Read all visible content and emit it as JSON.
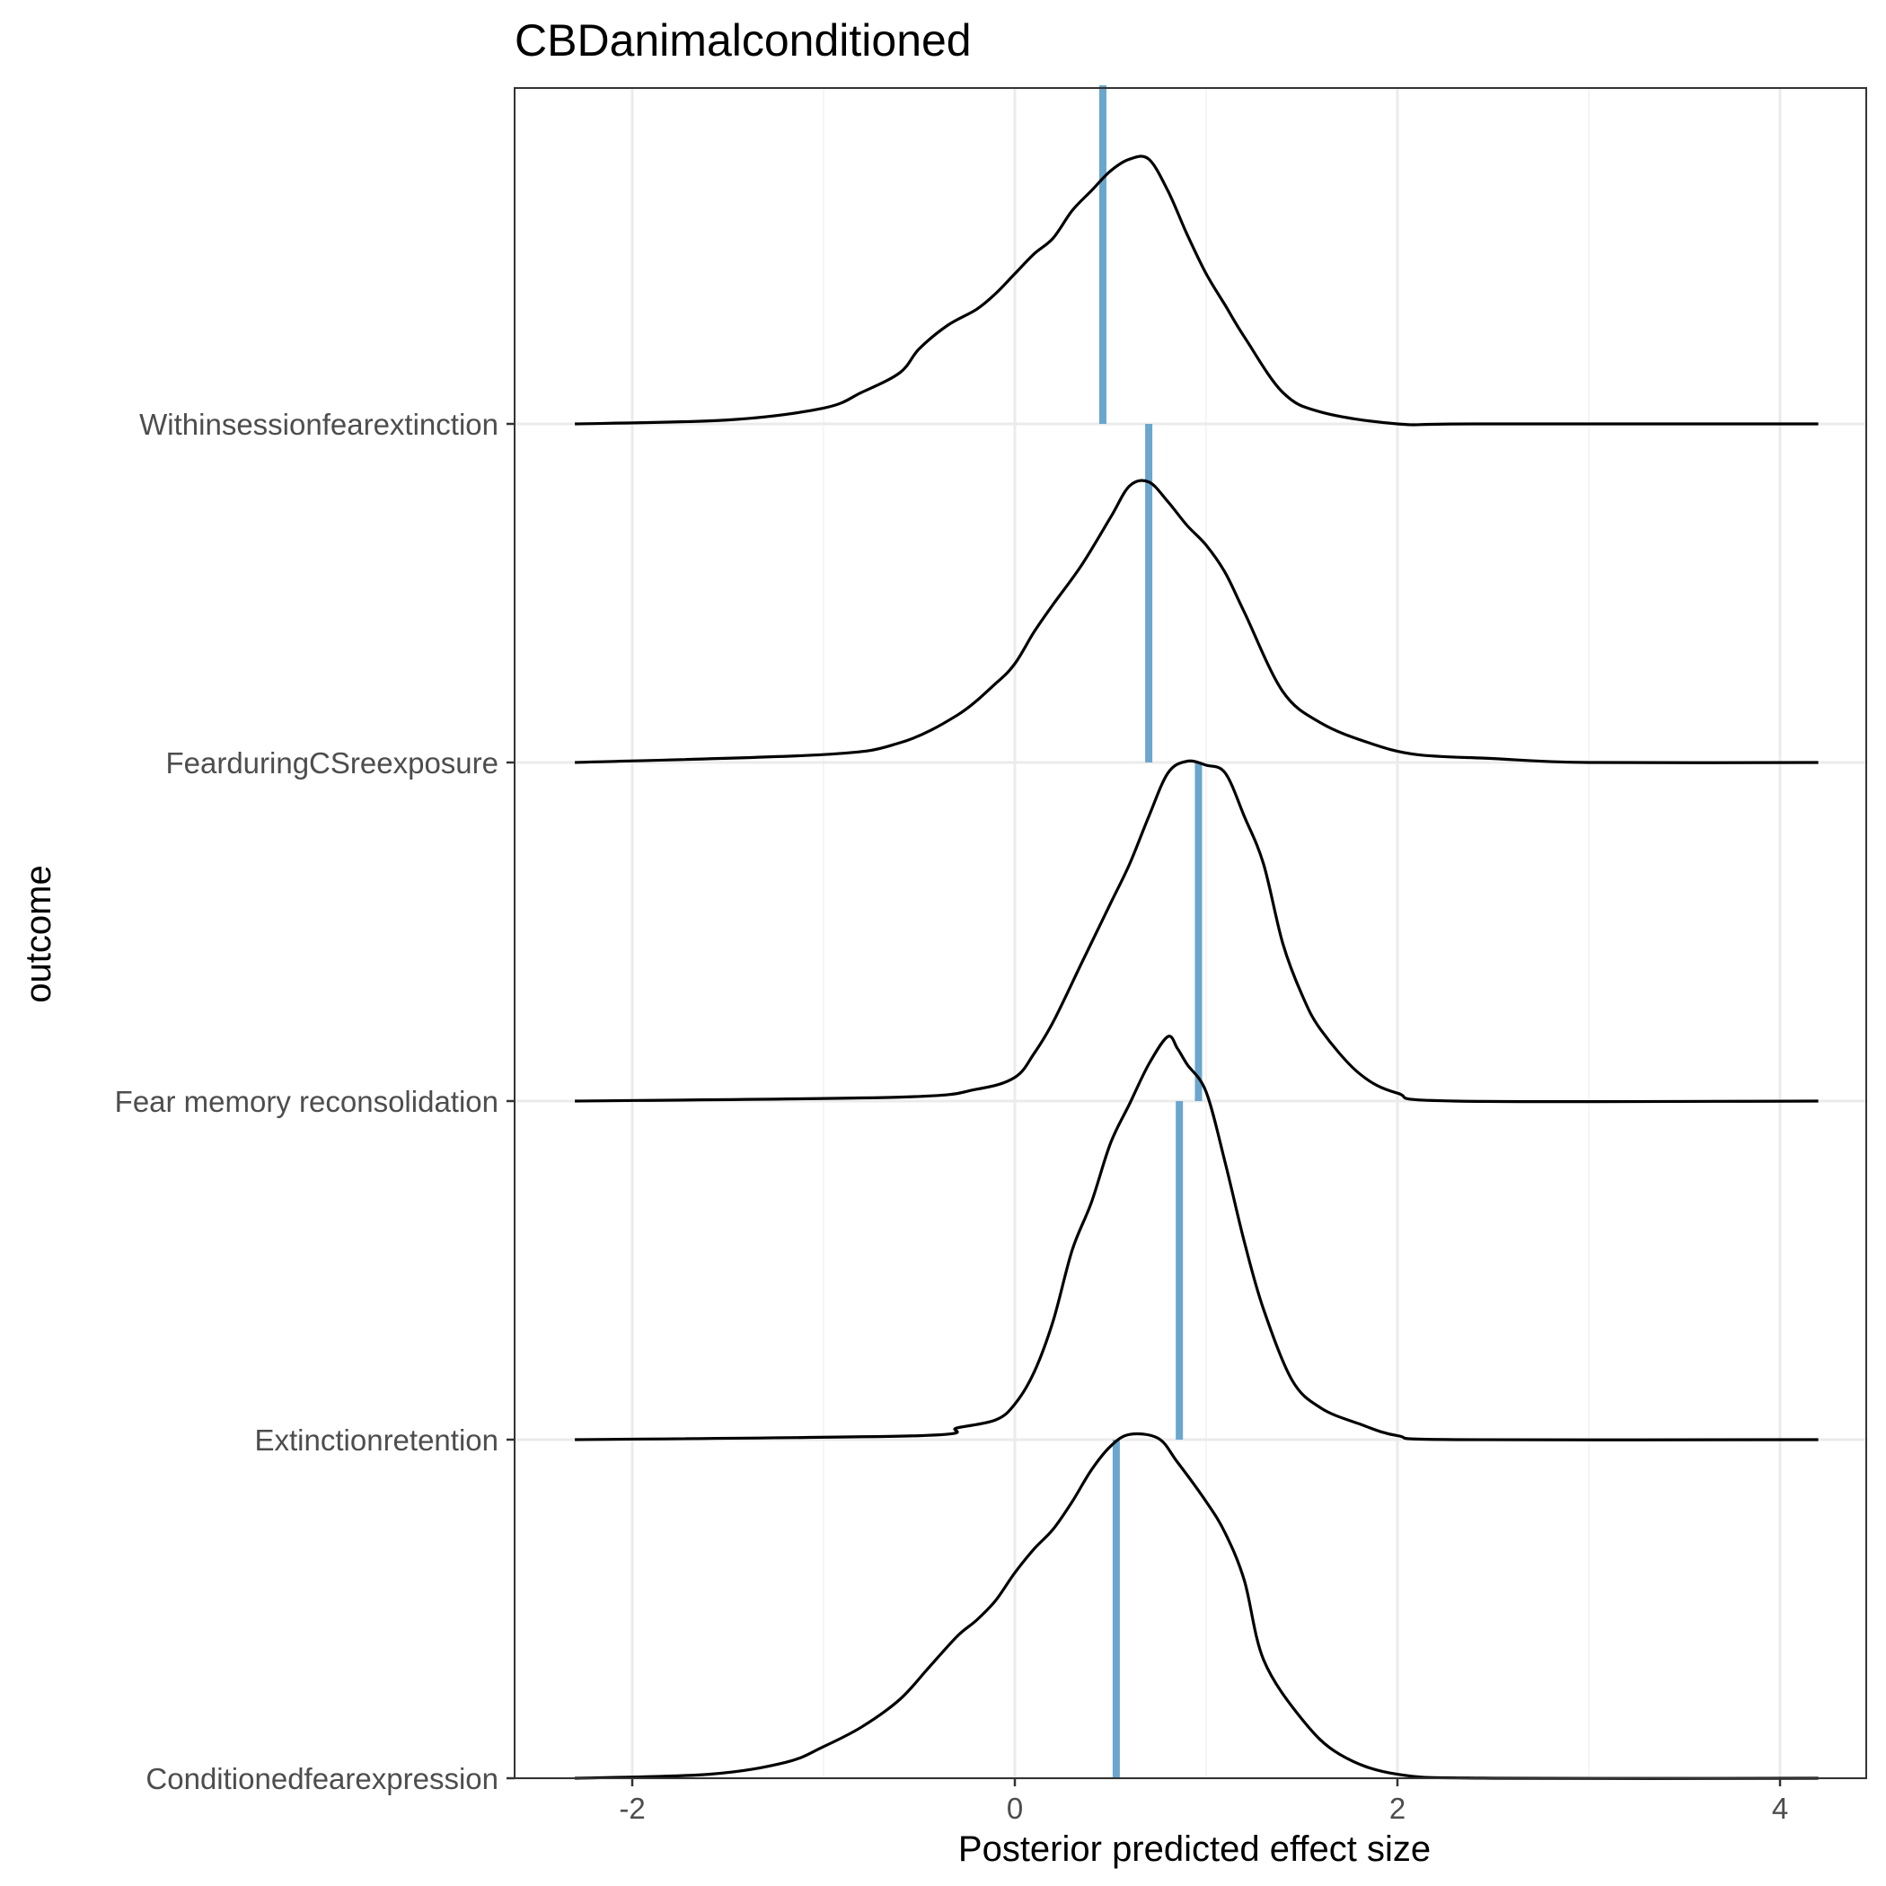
{
  "chart_data": {
    "type": "ridgeline",
    "title": "CBDanimalconditioned",
    "xlabel": "Posterior predicted effect size",
    "ylabel": "outcome",
    "xlim": [
      -2.6,
      4.6
    ],
    "x_ticks": [
      -2,
      0,
      2,
      4
    ],
    "x_tick_labels": [
      "-2",
      "0",
      "2",
      "4"
    ],
    "grid": true,
    "categories": [
      "Conditionedfearexpression",
      "Extinctionretention",
      "Fear memory reconsolidation",
      "FearduringCSreexposure",
      "Withinsessionfearextinction"
    ],
    "series": [
      {
        "name": "Conditionedfearexpression",
        "median": 0.53,
        "x": [
          -2.3,
          -1.6,
          -1.2,
          -1.0,
          -0.8,
          -0.6,
          -0.45,
          -0.3,
          -0.2,
          -0.1,
          0.0,
          0.1,
          0.2,
          0.3,
          0.4,
          0.5,
          0.6,
          0.75,
          0.85,
          1.0,
          1.1,
          1.2,
          1.3,
          1.5,
          1.7,
          2.0,
          2.5,
          4.2
        ],
        "density": [
          0.0,
          0.01,
          0.04,
          0.08,
          0.13,
          0.2,
          0.28,
          0.36,
          0.4,
          0.45,
          0.52,
          0.58,
          0.63,
          0.7,
          0.78,
          0.84,
          0.87,
          0.86,
          0.8,
          0.7,
          0.62,
          0.5,
          0.3,
          0.15,
          0.06,
          0.01,
          0.0,
          0.0
        ]
      },
      {
        "name": "Extinctionretention",
        "median": 0.86,
        "x": [
          -2.3,
          -0.5,
          -0.3,
          -0.1,
          0.0,
          0.1,
          0.2,
          0.3,
          0.4,
          0.5,
          0.6,
          0.7,
          0.8,
          0.85,
          0.9,
          1.0,
          1.1,
          1.2,
          1.3,
          1.45,
          1.6,
          1.8,
          2.0,
          2.3,
          4.2
        ],
        "density": [
          0.0,
          0.01,
          0.03,
          0.05,
          0.09,
          0.17,
          0.3,
          0.48,
          0.6,
          0.75,
          0.85,
          0.95,
          1.02,
          0.99,
          0.95,
          0.88,
          0.7,
          0.5,
          0.33,
          0.15,
          0.08,
          0.04,
          0.01,
          0.0,
          0.0
        ]
      },
      {
        "name": "Fear memory reconsolidation",
        "median": 0.96,
        "x": [
          -2.3,
          -0.6,
          -0.2,
          0.0,
          0.1,
          0.2,
          0.35,
          0.5,
          0.6,
          0.7,
          0.8,
          0.9,
          1.0,
          1.1,
          1.2,
          1.3,
          1.4,
          1.5,
          1.6,
          1.8,
          2.0,
          2.3,
          4.2
        ],
        "density": [
          0.0,
          0.01,
          0.03,
          0.06,
          0.12,
          0.2,
          0.35,
          0.5,
          0.6,
          0.72,
          0.83,
          0.86,
          0.85,
          0.83,
          0.72,
          0.6,
          0.4,
          0.27,
          0.18,
          0.07,
          0.02,
          0.0,
          0.0
        ]
      },
      {
        "name": "FearduringCSreexposure",
        "median": 0.7,
        "x": [
          -2.3,
          -1.0,
          -0.6,
          -0.3,
          -0.1,
          0.0,
          0.1,
          0.2,
          0.35,
          0.5,
          0.6,
          0.7,
          0.8,
          0.9,
          1.0,
          1.1,
          1.2,
          1.4,
          1.6,
          1.85,
          2.1,
          2.5,
          3.0,
          4.2
        ],
        "density": [
          0.0,
          0.02,
          0.05,
          0.12,
          0.2,
          0.25,
          0.33,
          0.4,
          0.5,
          0.62,
          0.7,
          0.71,
          0.66,
          0.6,
          0.55,
          0.48,
          0.38,
          0.18,
          0.1,
          0.05,
          0.02,
          0.01,
          0.0,
          0.0
        ]
      },
      {
        "name": "Withinsessionfearextinction",
        "median": 0.46,
        "x": [
          -2.3,
          -1.5,
          -1.0,
          -0.8,
          -0.6,
          -0.5,
          -0.35,
          -0.2,
          -0.1,
          0.0,
          0.1,
          0.2,
          0.3,
          0.4,
          0.5,
          0.6,
          0.7,
          0.8,
          0.9,
          1.0,
          1.1,
          1.2,
          1.4,
          1.6,
          2.0,
          2.4,
          4.2
        ],
        "density": [
          0.0,
          0.01,
          0.04,
          0.08,
          0.13,
          0.19,
          0.25,
          0.29,
          0.33,
          0.38,
          0.43,
          0.47,
          0.54,
          0.59,
          0.64,
          0.67,
          0.67,
          0.59,
          0.48,
          0.38,
          0.3,
          0.22,
          0.08,
          0.03,
          0.0,
          0.0,
          0.0
        ]
      }
    ],
    "colors": {
      "median_line": "#6aa6cd",
      "density_line": "#000000",
      "grid_major": "#ebebeb",
      "grid_minor": "#f2f2f2",
      "panel_border": "#333333",
      "tick_text": "#4d4d4d"
    }
  }
}
